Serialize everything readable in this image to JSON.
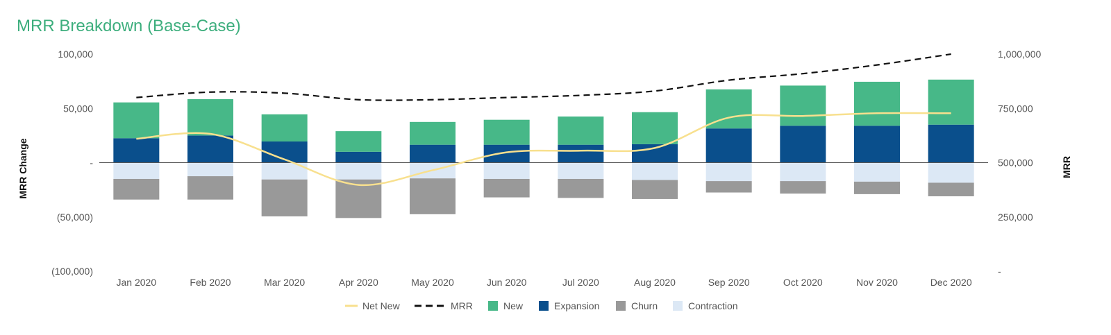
{
  "chart_data": {
    "type": "bar",
    "title": "MRR Breakdown (Base-Case)",
    "categories": [
      "Jan 2020",
      "Feb 2020",
      "Mar 2020",
      "Apr 2020",
      "May 2020",
      "Jun 2020",
      "Jul 2020",
      "Aug 2020",
      "Sep 2020",
      "Oct 2020",
      "Nov 2020",
      "Dec 2020"
    ],
    "stacked": true,
    "series": [
      {
        "name": "Expansion",
        "kind": "bar",
        "color": "#0a4f8c",
        "values": [
          22500,
          25000,
          19500,
          10000,
          16500,
          16500,
          16500,
          17000,
          31500,
          34000,
          34000,
          35000
        ]
      },
      {
        "name": "New",
        "kind": "bar",
        "color": "#47b888",
        "values": [
          33000,
          33500,
          25000,
          19000,
          21000,
          23000,
          26000,
          29500,
          36000,
          37000,
          40500,
          41500
        ]
      },
      {
        "name": "Contraction",
        "kind": "bar",
        "color": "#dce8f5",
        "values": [
          -15000,
          -12500,
          -15500,
          -15500,
          -14500,
          -15000,
          -15000,
          -16000,
          -17000,
          -17000,
          -17500,
          -18500
        ]
      },
      {
        "name": "Churn",
        "kind": "bar",
        "color": "#999999",
        "values": [
          -19000,
          -21500,
          -34000,
          -35500,
          -33000,
          -17000,
          -17500,
          -17500,
          -10500,
          -11500,
          -11500,
          -12500
        ]
      },
      {
        "name": "Net New",
        "kind": "line",
        "axis": "left",
        "color": "#f8e08e",
        "values": [
          22000,
          26500,
          3000,
          -20500,
          -7000,
          9500,
          11000,
          13500,
          41500,
          43000,
          45500,
          45500
        ]
      },
      {
        "name": "MRR",
        "kind": "line",
        "axis": "right",
        "dashed": true,
        "color": "#111111",
        "values": [
          800000,
          825000,
          820000,
          790000,
          790000,
          800000,
          810000,
          830000,
          880000,
          910000,
          950000,
          1000000
        ]
      }
    ],
    "y_left": {
      "label": "MRR Change",
      "range": [
        -100000,
        100000
      ],
      "ticks": [
        100000,
        50000,
        0,
        -50000,
        -100000
      ],
      "tick_labels": [
        "100,000",
        "50,000",
        "-",
        "(50,000)",
        "(100,000)"
      ]
    },
    "y_right": {
      "label": "MRR",
      "range": [
        0,
        1000000
      ],
      "ticks": [
        1000000,
        750000,
        500000,
        250000,
        0
      ],
      "tick_labels": [
        "1,000,000",
        "750,000",
        "500,000",
        "250,000",
        "-"
      ]
    },
    "legend": {
      "position": "bottom",
      "items": [
        {
          "label": "Net New",
          "symbol": "line",
          "color": "#f8e08e"
        },
        {
          "label": "MRR",
          "symbol": "dashed",
          "color": "#111111"
        },
        {
          "label": "New",
          "symbol": "square",
          "color": "#47b888"
        },
        {
          "label": "Expansion",
          "symbol": "square",
          "color": "#0a4f8c"
        },
        {
          "label": "Churn",
          "symbol": "square",
          "color": "#999999"
        },
        {
          "label": "Contraction",
          "symbol": "square",
          "color": "#dce8f5"
        }
      ]
    },
    "grid": false
  }
}
